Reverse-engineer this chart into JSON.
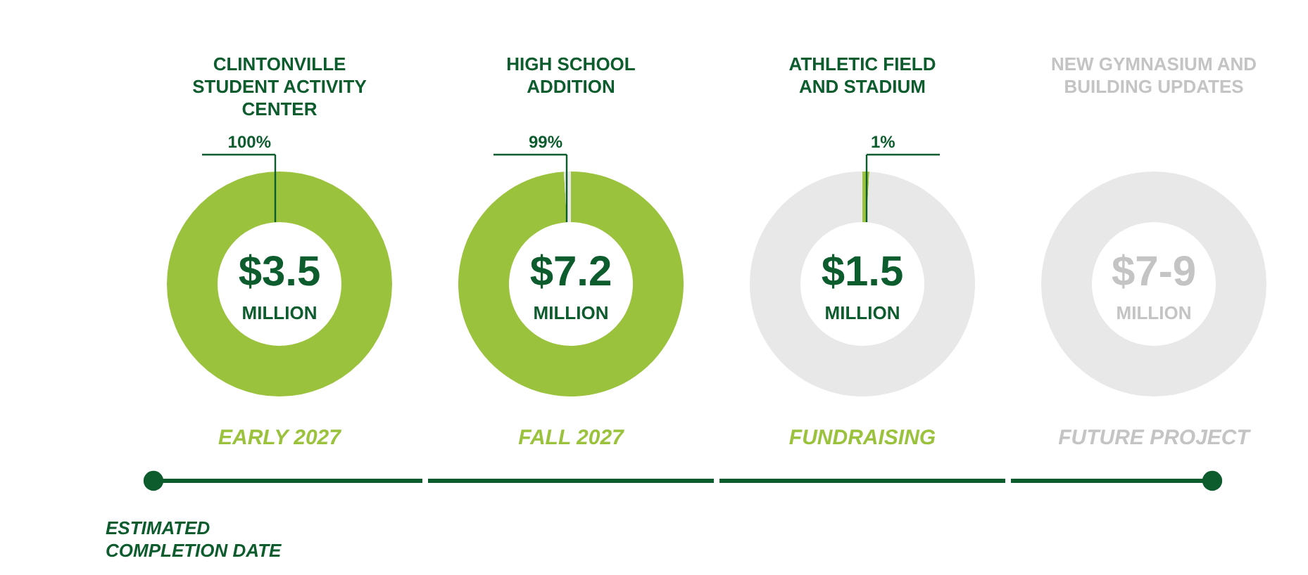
{
  "chart_data": [
    {
      "type": "donut",
      "title": "CLINTONVILLE STUDENT ACTIVITY CENTER",
      "categories": [
        null,
        null
      ],
      "values": [
        100,
        0
      ],
      "colors": [
        "#9bc23c",
        "#e8e8e8"
      ],
      "value_labels": [
        "100%",
        null
      ],
      "annotations": [
        "$3.5",
        "MILLION",
        "EARLY 2027",
        "ESTIMATED COMPLETION DATE"
      ]
    },
    {
      "type": "donut",
      "title": "HIGH SCHOOL ADDITION",
      "categories": [
        null,
        null
      ],
      "values": [
        99,
        1
      ],
      "colors": [
        "#9bc23c",
        "#e8e8e8"
      ],
      "value_labels": [
        "99%",
        null
      ],
      "annotations": [
        "$7.2",
        "MILLION",
        "FALL 2027"
      ]
    },
    {
      "type": "donut",
      "title": "ATHLETIC FIELD AND STADIUM",
      "categories": [
        null,
        null
      ],
      "values": [
        1,
        99
      ],
      "colors": [
        "#9bc23c",
        "#e8e8e8"
      ],
      "value_labels": [
        "1%",
        null
      ],
      "annotations": [
        "$1.5",
        "MILLION",
        "FUNDRAISING"
      ]
    },
    {
      "type": "donut",
      "title": "NEW GYMNASIUM AND BUILDING UPDATES",
      "categories": [
        null,
        null
      ],
      "values": [
        0,
        100
      ],
      "colors": [
        "#9bc23c",
        "#e8e8e8"
      ],
      "value_labels": [
        null,
        null
      ],
      "annotations": [
        "$7-9",
        "MILLION",
        "FUTURE PROJECT"
      ]
    }
  ]
}
